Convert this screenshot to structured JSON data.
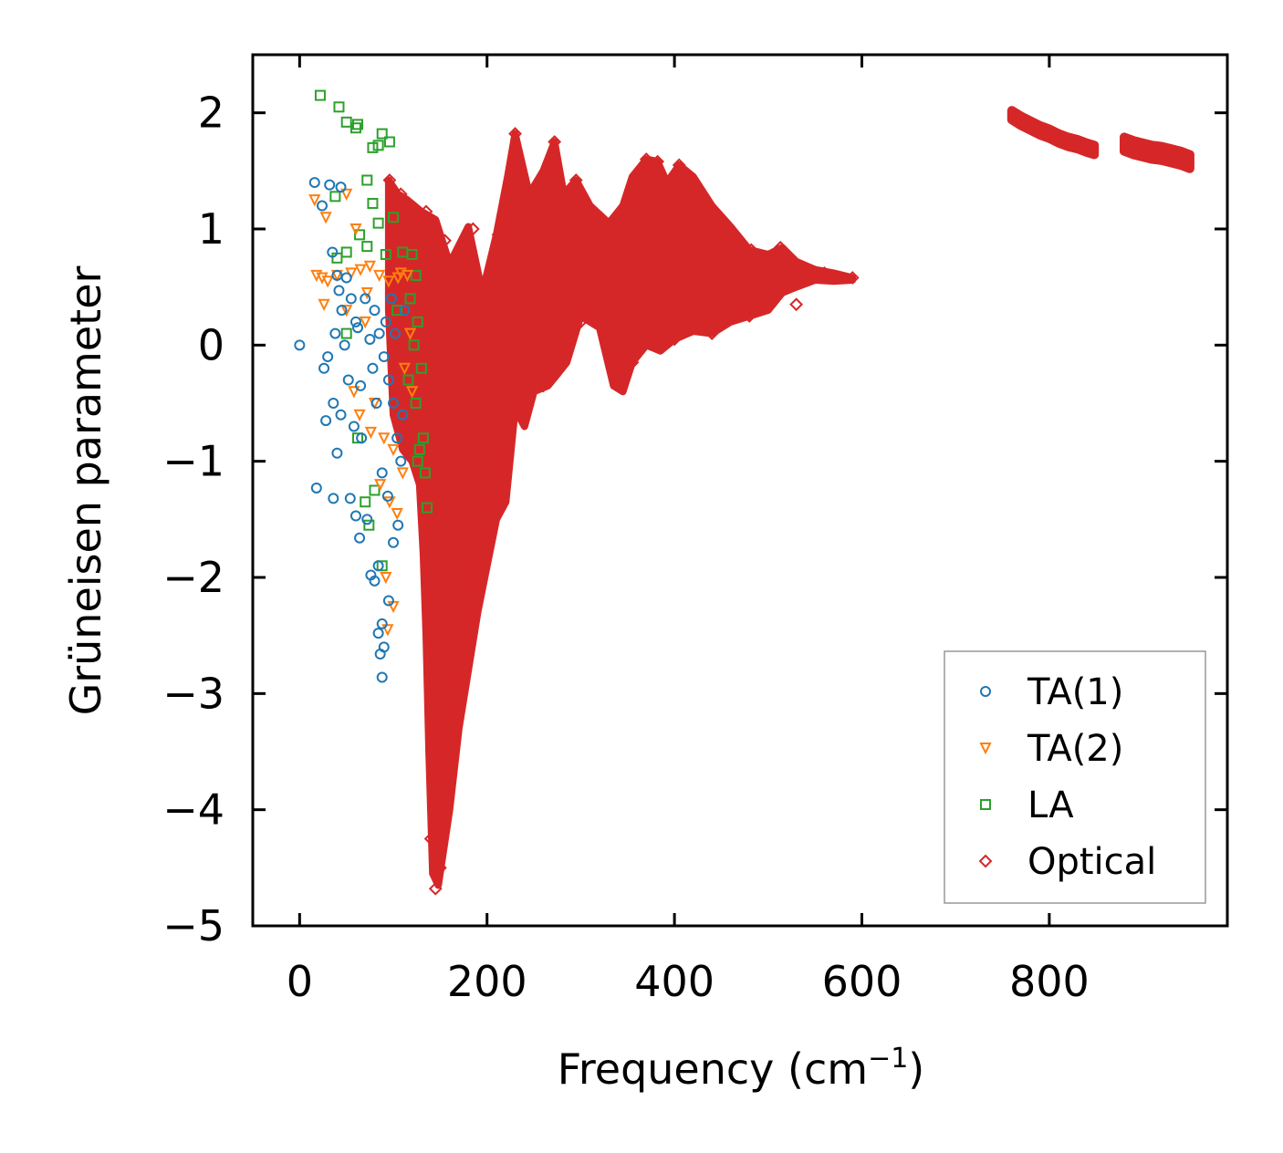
{
  "chart_data": {
    "type": "scatter",
    "title": "",
    "xlabel": "Frequency (cm",
    "xlabel_sup": "−1",
    "xlabel_close": ")",
    "ylabel": "Grüneisen parameter",
    "xlim": [
      -50,
      990
    ],
    "ylim": [
      -5,
      2.5
    ],
    "xticks": [
      0,
      200,
      400,
      600,
      800
    ],
    "xtick_labels": [
      "0",
      "200",
      "400",
      "600",
      "800"
    ],
    "yticks": [
      2,
      1,
      0,
      -1,
      -2,
      -3,
      -4,
      -5
    ],
    "ytick_labels": [
      "2",
      "1",
      "0",
      "−1",
      "−2",
      "−3",
      "−4",
      "−5"
    ],
    "legend_position": "lower-right",
    "series": [
      {
        "name": "TA(1)",
        "marker": "circle",
        "color": "#1f77b4",
        "points": [
          [
            0,
            0
          ],
          [
            16,
            1.4
          ],
          [
            32,
            1.38
          ],
          [
            44,
            1.36
          ],
          [
            24,
            1.2
          ],
          [
            35,
            0.8
          ],
          [
            40,
            0.6
          ],
          [
            50,
            0.58
          ],
          [
            42,
            0.47
          ],
          [
            55,
            0.4
          ],
          [
            45,
            0.3
          ],
          [
            60,
            0.2
          ],
          [
            38,
            0.1
          ],
          [
            48,
            0
          ],
          [
            30,
            -0.1
          ],
          [
            26,
            -0.2
          ],
          [
            52,
            -0.3
          ],
          [
            36,
            -0.5
          ],
          [
            44,
            -0.6
          ],
          [
            28,
            -0.65
          ],
          [
            58,
            -0.7
          ],
          [
            66,
            -0.8
          ],
          [
            40,
            -0.93
          ],
          [
            18,
            -1.23
          ],
          [
            36,
            -1.32
          ],
          [
            54,
            -1.32
          ],
          [
            60,
            -1.47
          ],
          [
            72,
            -1.5
          ],
          [
            64,
            -1.66
          ],
          [
            84,
            -1.9
          ],
          [
            76,
            -1.98
          ],
          [
            80,
            -2.03
          ],
          [
            88,
            -2.4
          ],
          [
            84,
            -2.48
          ],
          [
            90,
            -2.6
          ],
          [
            86,
            -2.66
          ],
          [
            88,
            -2.86
          ],
          [
            95,
            -2.2
          ],
          [
            100,
            -1.7
          ],
          [
            105,
            -1.55
          ],
          [
            70,
            0.4
          ],
          [
            80,
            0.3
          ],
          [
            85,
            0.1
          ],
          [
            90,
            -0.1
          ],
          [
            95,
            -0.3
          ],
          [
            100,
            -0.5
          ],
          [
            104,
            -0.8
          ],
          [
            108,
            -1.0
          ],
          [
            78,
            -0.2
          ],
          [
            82,
            -0.5
          ],
          [
            92,
            0.2
          ],
          [
            98,
            0.4
          ],
          [
            102,
            0.1
          ],
          [
            75,
            0.05
          ],
          [
            65,
            -0.35
          ],
          [
            62,
            0.15
          ],
          [
            88,
            -1.1
          ],
          [
            94,
            -1.3
          ],
          [
            110,
            -0.6
          ],
          [
            112,
            0.3
          ]
        ]
      },
      {
        "name": "TA(2)",
        "marker": "triangle-down",
        "color": "#ff7f0e",
        "points": [
          [
            16,
            1.25
          ],
          [
            28,
            1.1
          ],
          [
            50,
            1.3
          ],
          [
            60,
            1.0
          ],
          [
            18,
            0.6
          ],
          [
            24,
            0.58
          ],
          [
            30,
            0.55
          ],
          [
            40,
            0.6
          ],
          [
            55,
            0.62
          ],
          [
            65,
            0.65
          ],
          [
            75,
            0.68
          ],
          [
            85,
            0.6
          ],
          [
            95,
            0.55
          ],
          [
            105,
            0.58
          ],
          [
            115,
            0.6
          ],
          [
            26,
            0.35
          ],
          [
            50,
            0.3
          ],
          [
            70,
            0.2
          ],
          [
            58,
            -0.4
          ],
          [
            64,
            -0.6
          ],
          [
            76,
            -0.75
          ],
          [
            90,
            -0.8
          ],
          [
            100,
            -0.9
          ],
          [
            110,
            -1.1
          ],
          [
            86,
            -1.2
          ],
          [
            96,
            -1.35
          ],
          [
            104,
            -1.45
          ],
          [
            94,
            -2.45
          ],
          [
            100,
            -2.25
          ],
          [
            92,
            -2.0
          ],
          [
            120,
            -0.4
          ],
          [
            118,
            0.1
          ],
          [
            80,
            -0.5
          ],
          [
            72,
            0.45
          ],
          [
            108,
            0.62
          ],
          [
            112,
            -0.2
          ]
        ]
      },
      {
        "name": "LA",
        "marker": "square",
        "color": "#2ca02c",
        "points": [
          [
            22,
            2.15
          ],
          [
            42,
            2.05
          ],
          [
            50,
            1.92
          ],
          [
            62,
            1.9
          ],
          [
            60,
            1.87
          ],
          [
            88,
            1.82
          ],
          [
            96,
            1.75
          ],
          [
            78,
            1.7
          ],
          [
            84,
            1.72
          ],
          [
            72,
            1.42
          ],
          [
            38,
            1.28
          ],
          [
            78,
            1.22
          ],
          [
            100,
            1.1
          ],
          [
            84,
            1.05
          ],
          [
            64,
            0.95
          ],
          [
            72,
            0.85
          ],
          [
            50,
            0.8
          ],
          [
            40,
            0.75
          ],
          [
            92,
            0.78
          ],
          [
            110,
            0.8
          ],
          [
            120,
            0.78
          ],
          [
            124,
            0.6
          ],
          [
            118,
            0.4
          ],
          [
            126,
            0.2
          ],
          [
            122,
            0
          ],
          [
            130,
            -0.2
          ],
          [
            124,
            -0.5
          ],
          [
            132,
            -0.8
          ],
          [
            126,
            -1.0
          ],
          [
            134,
            -1.1
          ],
          [
            136,
            -1.4
          ],
          [
            128,
            -0.9
          ],
          [
            50,
            0.1
          ],
          [
            62,
            -0.8
          ],
          [
            70,
            -1.35
          ],
          [
            80,
            -1.25
          ],
          [
            88,
            -1.9
          ],
          [
            74,
            -1.55
          ],
          [
            116,
            -0.3
          ],
          [
            104,
            0.3
          ]
        ]
      },
      {
        "name": "Optical",
        "marker": "diamond",
        "color": "#d62728",
        "upper": [
          [
            95,
            1.42
          ],
          [
            105,
            1.3
          ],
          [
            115,
            1.25
          ],
          [
            130,
            1.15
          ],
          [
            145,
            1.08
          ],
          [
            160,
            0.7
          ],
          [
            180,
            1.02
          ],
          [
            195,
            0.45
          ],
          [
            210,
            0.95
          ],
          [
            222,
            1.45
          ],
          [
            230,
            1.82
          ],
          [
            245,
            1.3
          ],
          [
            260,
            1.5
          ],
          [
            272,
            1.75
          ],
          [
            282,
            1.3
          ],
          [
            295,
            1.42
          ],
          [
            310,
            1.2
          ],
          [
            330,
            1.05
          ],
          [
            345,
            1.2
          ],
          [
            355,
            1.45
          ],
          [
            370,
            1.6
          ],
          [
            382,
            1.58
          ],
          [
            392,
            1.4
          ],
          [
            405,
            1.55
          ],
          [
            420,
            1.45
          ],
          [
            440,
            1.2
          ],
          [
            460,
            1.02
          ],
          [
            480,
            0.82
          ],
          [
            500,
            0.78
          ],
          [
            515,
            0.84
          ],
          [
            530,
            0.72
          ],
          [
            550,
            0.65
          ],
          [
            570,
            0.62
          ],
          [
            590,
            0.58
          ]
        ],
        "lower": [
          [
            590,
            0.56
          ],
          [
            570,
            0.55
          ],
          [
            550,
            0.56
          ],
          [
            530,
            0.5
          ],
          [
            515,
            0.45
          ],
          [
            500,
            0.3
          ],
          [
            480,
            0.25
          ],
          [
            460,
            0.2
          ],
          [
            440,
            0.1
          ],
          [
            420,
            0.12
          ],
          [
            400,
            0.05
          ],
          [
            385,
            -0.05
          ],
          [
            370,
            0.0
          ],
          [
            355,
            -0.15
          ],
          [
            345,
            -0.4
          ],
          [
            335,
            -0.35
          ],
          [
            320,
            0.15
          ],
          [
            300,
            0.25
          ],
          [
            285,
            -0.15
          ],
          [
            275,
            -0.25
          ],
          [
            265,
            -0.35
          ],
          [
            250,
            -0.4
          ],
          [
            240,
            -0.7
          ],
          [
            230,
            -0.55
          ],
          [
            220,
            -1.35
          ],
          [
            210,
            -1.5
          ],
          [
            200,
            -1.9
          ],
          [
            190,
            -2.3
          ],
          [
            180,
            -2.8
          ],
          [
            170,
            -3.3
          ],
          [
            160,
            -4.0
          ],
          [
            148,
            -4.65
          ],
          [
            142,
            -4.55
          ],
          [
            138,
            -3.5
          ],
          [
            135,
            -2.5
          ],
          [
            132,
            -1.8
          ],
          [
            128,
            -1.2
          ],
          [
            120,
            -1.0
          ],
          [
            110,
            -0.9
          ],
          [
            100,
            -0.6
          ],
          [
            95,
            0.3
          ]
        ],
        "bands": [
          {
            "points": [
              [
                760,
                1.98
              ],
              [
                770,
                1.93
              ],
              [
                780,
                1.89
              ],
              [
                790,
                1.85
              ],
              [
                800,
                1.82
              ],
              [
                810,
                1.78
              ],
              [
                820,
                1.75
              ],
              [
                830,
                1.73
              ],
              [
                840,
                1.7
              ],
              [
                848,
                1.68
              ]
            ],
            "spread": 0.08
          },
          {
            "points": [
              [
                880,
                1.73
              ],
              [
                890,
                1.7
              ],
              [
                900,
                1.68
              ],
              [
                910,
                1.66
              ],
              [
                920,
                1.65
              ],
              [
                930,
                1.63
              ],
              [
                940,
                1.61
              ],
              [
                950,
                1.58
              ]
            ],
            "spread": 0.12
          }
        ],
        "points": [
          [
            96,
            1.42
          ],
          [
            108,
            1.3
          ],
          [
            135,
            1.15
          ],
          [
            155,
            0.9
          ],
          [
            185,
            1.0
          ],
          [
            212,
            0.95
          ],
          [
            230,
            1.82
          ],
          [
            272,
            1.75
          ],
          [
            295,
            1.42
          ],
          [
            370,
            1.6
          ],
          [
            382,
            1.58
          ],
          [
            405,
            1.55
          ],
          [
            482,
            0.82
          ],
          [
            513,
            0.84
          ],
          [
            560,
            0.62
          ],
          [
            590,
            0.58
          ],
          [
            340,
            -0.35
          ],
          [
            145,
            -4.68
          ],
          [
            150,
            -4.5
          ],
          [
            140,
            -4.25
          ],
          [
            155,
            -4.0
          ],
          [
            150,
            -3.7
          ],
          [
            165,
            -3.2
          ],
          [
            170,
            -2.8
          ],
          [
            160,
            -2.5
          ],
          [
            180,
            -2.0
          ],
          [
            200,
            -1.4
          ],
          [
            230,
            -0.6
          ],
          [
            260,
            -0.35
          ],
          [
            300,
            0.2
          ],
          [
            355,
            -0.15
          ],
          [
            400,
            0.05
          ],
          [
            440,
            0.1
          ],
          [
            480,
            0.25
          ],
          [
            530,
            0.35
          ]
        ]
      }
    ]
  }
}
